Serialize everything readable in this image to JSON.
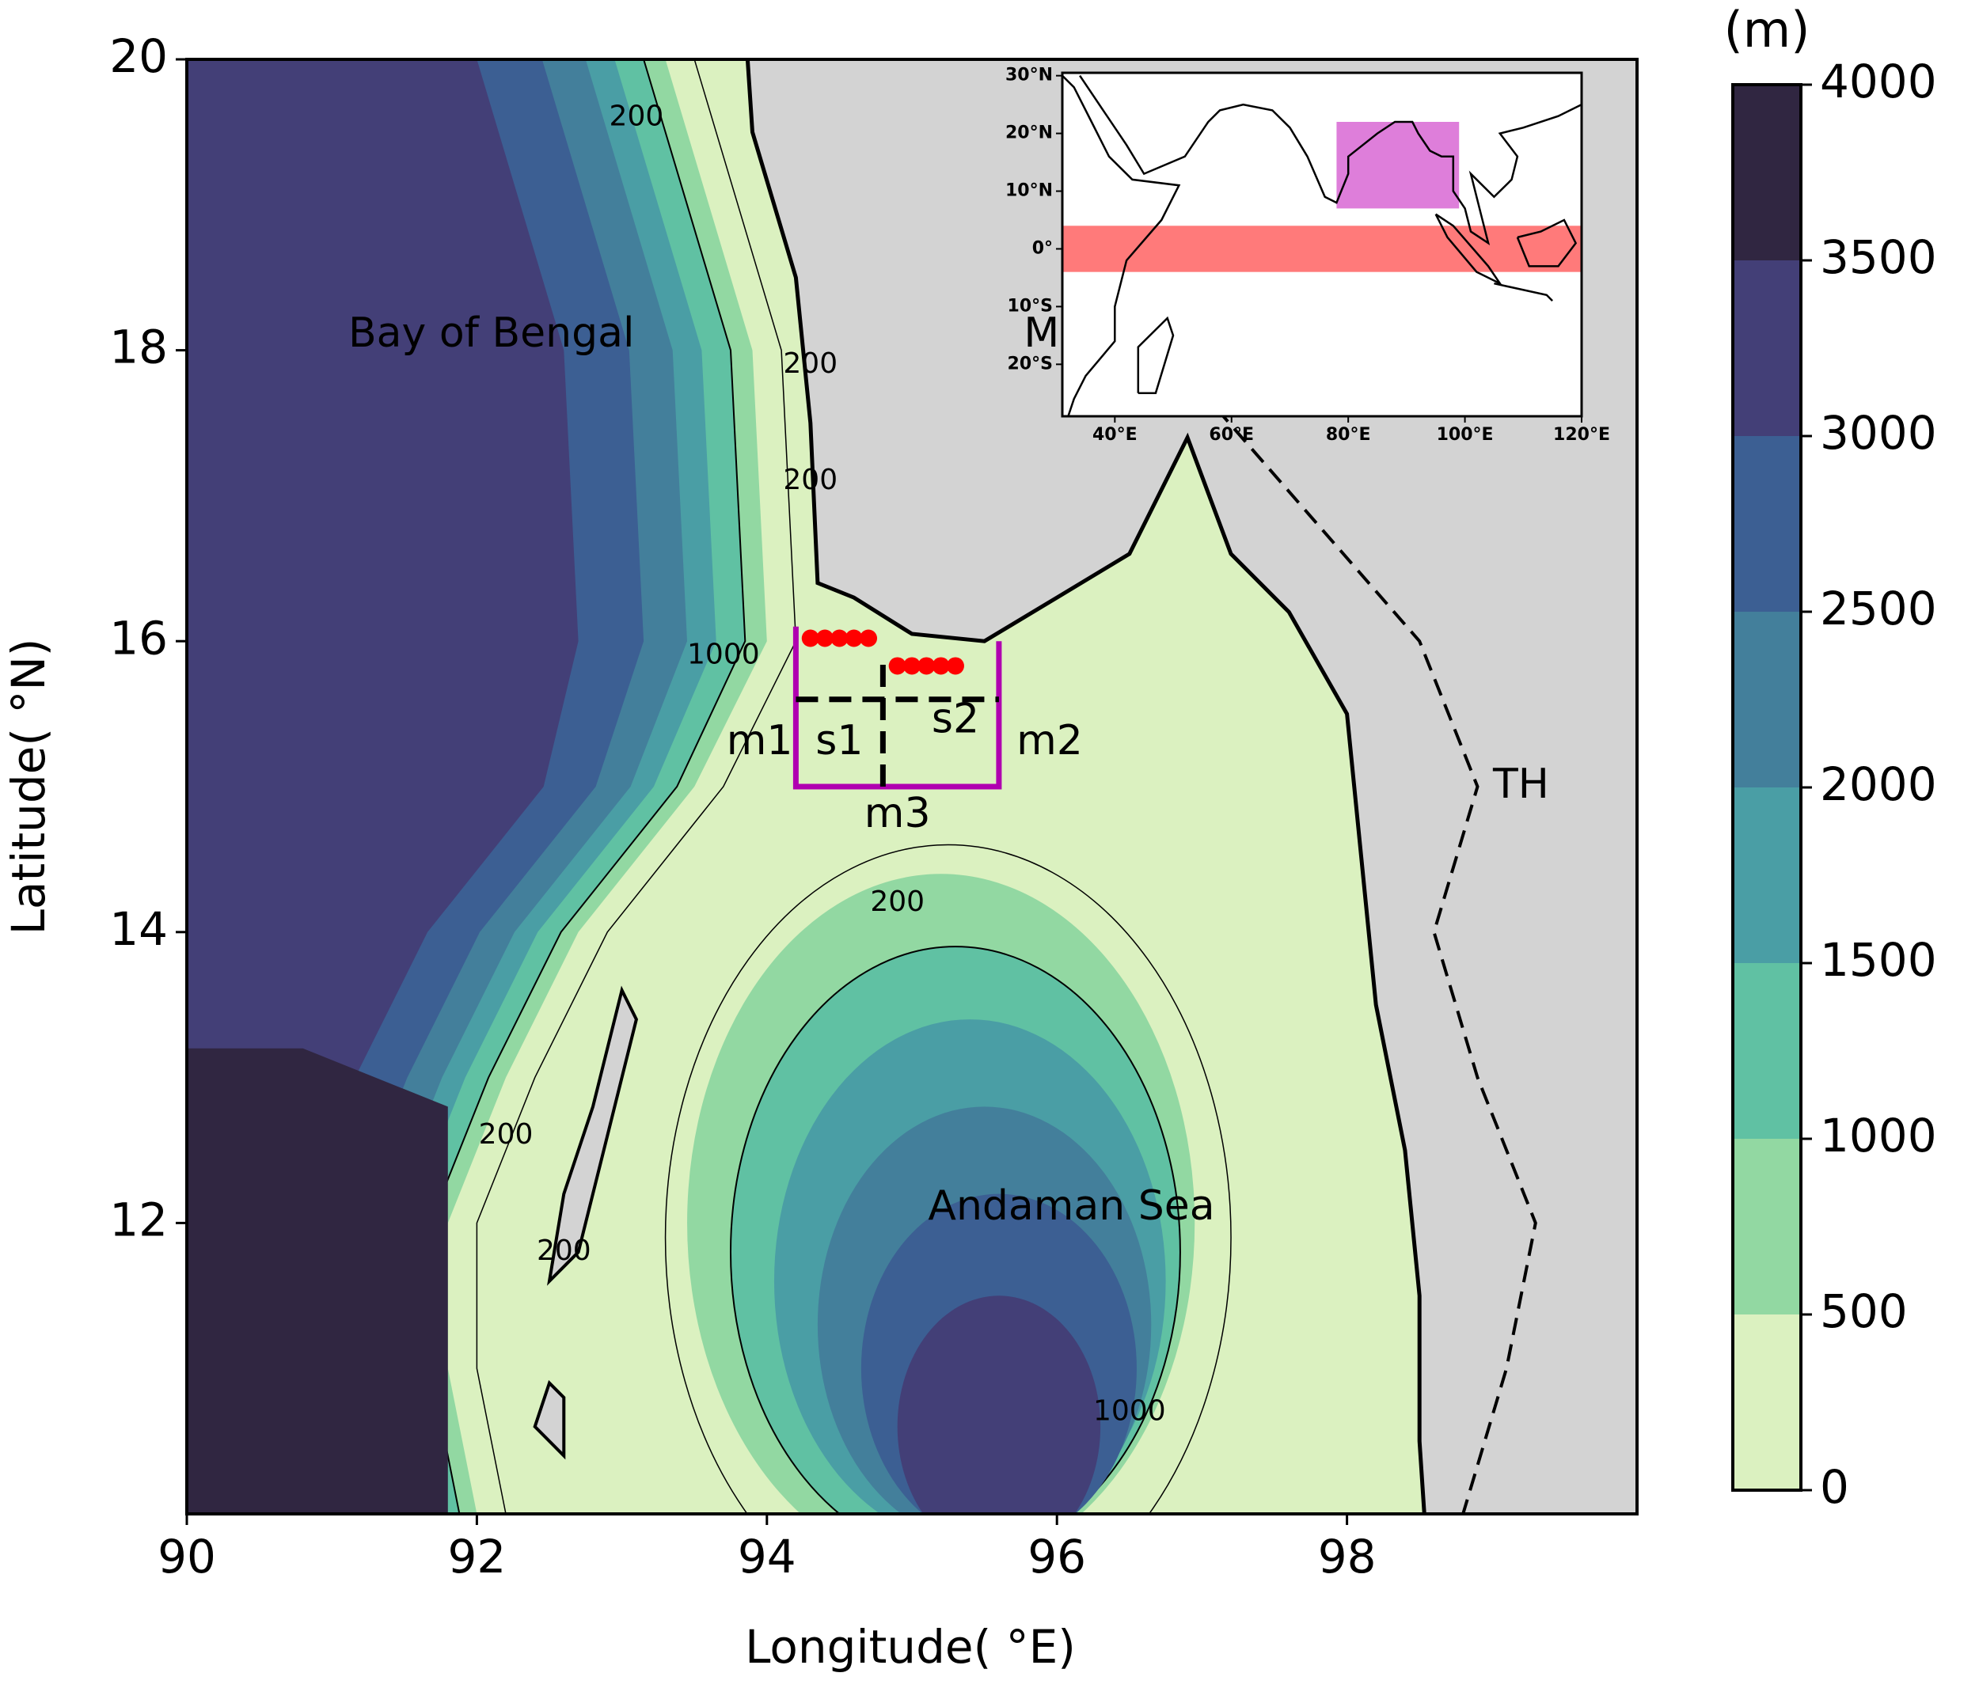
{
  "chart_data": {
    "type": "map",
    "xlabel": "Longitude( $^\\circ$E)",
    "ylabel": "Latitude( $^\\circ$N)",
    "xlim": [
      90,
      100
    ],
    "ylim": [
      10,
      20
    ],
    "xticks": [
      90,
      92,
      94,
      96,
      98
    ],
    "yticks": [
      12,
      14,
      16,
      18,
      20
    ],
    "land_color": "#d3d3d3",
    "colorbar": {
      "label": "(m)",
      "ticks": [
        0,
        500,
        1000,
        1500,
        2000,
        2500,
        3000,
        3500,
        4000
      ],
      "colors": [
        "#dbf1c0",
        "#92d8a2",
        "#60c1a3",
        "#4a9ea5",
        "#437f9b",
        "#3c5f93",
        "#433f77",
        "#302641"
      ]
    },
    "places": [
      "Bay of Bengal",
      "MN",
      "TH",
      "Andaman Sea"
    ],
    "place_color": "#1010e0",
    "contour_labels": [
      200,
      200,
      200,
      1000,
      200,
      200,
      200,
      1000
    ],
    "box": {
      "lon": [
        94.2,
        95.6
      ],
      "lat": [
        15,
        16.1
      ],
      "split_lon": 94.8,
      "split_lat": 15.6,
      "color": "#b000b0",
      "labels": [
        "m1",
        "m2",
        "m3",
        "s1",
        "s2"
      ]
    },
    "stations": {
      "color": "#ff0000",
      "lon": [
        94.3,
        94.4,
        94.5,
        94.6,
        94.7,
        94.9,
        95.0,
        95.1,
        95.2,
        95.3
      ],
      "lat": [
        16.02,
        16.02,
        16.02,
        16.02,
        16.02,
        15.83,
        15.83,
        15.83,
        15.83,
        15.83
      ]
    },
    "inset": {
      "xlim": [
        31,
        120
      ],
      "ylim": [
        -29,
        30.5
      ],
      "xticks": [
        {
          "value": 40,
          "label": "40°E"
        },
        {
          "value": 60,
          "label": "60°E"
        },
        {
          "value": 80,
          "label": "80°E"
        },
        {
          "value": 100,
          "label": "100°E"
        },
        {
          "value": 120,
          "label": "120°E"
        }
      ],
      "yticks": [
        {
          "value": 30,
          "label": "30°N"
        },
        {
          "value": 20,
          "label": "20°N"
        },
        {
          "value": 10,
          "label": "10°N"
        },
        {
          "value": 0,
          "label": "0°"
        },
        {
          "value": -10,
          "label": "10°S"
        },
        {
          "value": -20,
          "label": "20°S"
        }
      ],
      "regions": [
        {
          "lon": [
            78,
            99
          ],
          "lat": [
            7,
            22
          ],
          "color": "#da70d6"
        },
        {
          "lon": [
            31,
            120
          ],
          "lat": [
            -4,
            4
          ],
          "color": "#ff6b6b"
        }
      ]
    }
  }
}
